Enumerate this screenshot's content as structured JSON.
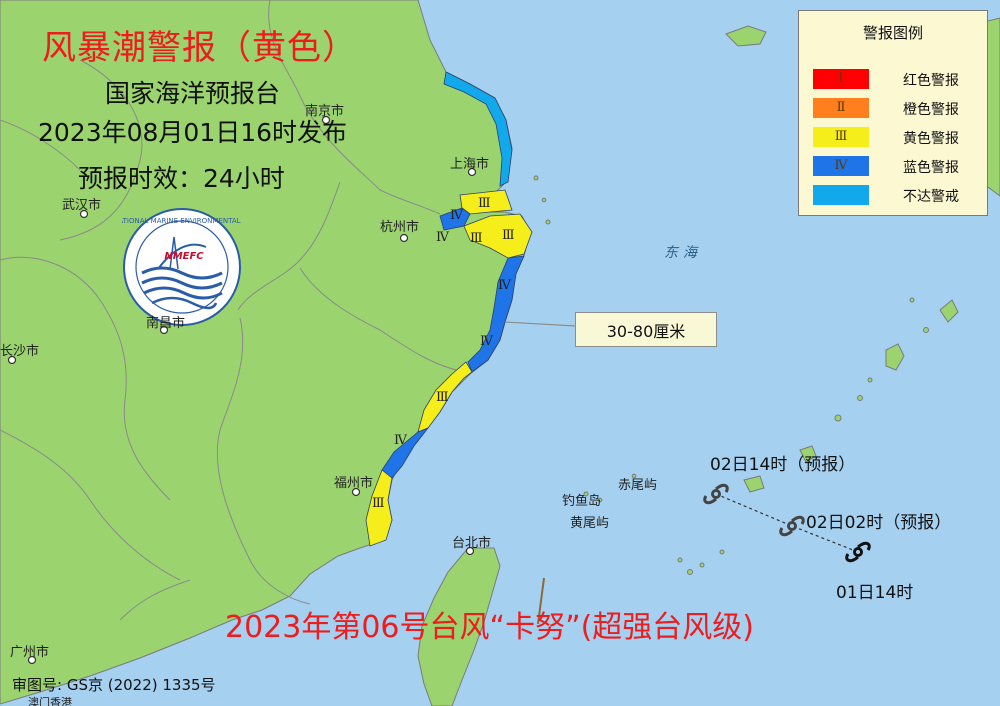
{
  "title": "风暴潮警报（黄色）",
  "issuer": "国家海洋预报台",
  "issued": "2023年08月01日16时发布",
  "validity": "预报时效：24小时",
  "typhoon_title": "2023年第06号台风“卡努”(超强台风级)",
  "map_approval": "审图号: GS京 (2022) 1335号",
  "legend": {
    "title": "警报图例",
    "items": [
      {
        "grade": "Ⅰ",
        "label": "红色警报",
        "color": "#ff0000"
      },
      {
        "grade": "Ⅱ",
        "label": "橙色警报",
        "color": "#ff7f1e"
      },
      {
        "grade": "Ⅲ",
        "label": "黄色警报",
        "color": "#f5ee1b"
      },
      {
        "grade": "Ⅳ",
        "label": "蓝色警报",
        "color": "#1f74e8"
      },
      {
        "grade": "",
        "label": "不达警戒",
        "color": "#12a9ec"
      }
    ]
  },
  "callout": "30-80厘米",
  "logo": {
    "text": "NMEFC",
    "ring_text": "国家海洋环境预报中心 NATIONAL MARINE ENVIRONMENTAL FORECASTING CENTER"
  },
  "sea_label": "东海",
  "cities": {
    "nanjing": "南京市",
    "shanghai": "上海市",
    "hangzhou": "杭州市",
    "wuhan": "武汉市",
    "nanchang": "南昌市",
    "changsha": "长沙市",
    "fuzhou": "福州市",
    "taipei": "台北市",
    "guangzhou": "广州市",
    "macau_hk": "澳门香港"
  },
  "islands": {
    "chiwei": "赤尾屿",
    "diaoyu": "钓鱼岛",
    "huangwei": "黄尾屿"
  },
  "coast_grades": {
    "g1": "Ⅲ",
    "g2": "Ⅳ",
    "g3": "Ⅳ",
    "g4": "Ⅲ",
    "g5": "Ⅲ",
    "g6": "Ⅳ",
    "g7": "Ⅳ",
    "g8": "Ⅲ",
    "g9": "Ⅳ",
    "g10": "Ⅲ"
  },
  "track": [
    {
      "label": "01日14时",
      "status": "observed"
    },
    {
      "label": "02日02时（预报）",
      "status": "forecast"
    },
    {
      "label": "02日14时（预报）",
      "status": "forecast"
    }
  ],
  "colors": {
    "sea": "#a6d0f0",
    "land": "#9bd46f",
    "alert_title": "#ee1c1c"
  }
}
